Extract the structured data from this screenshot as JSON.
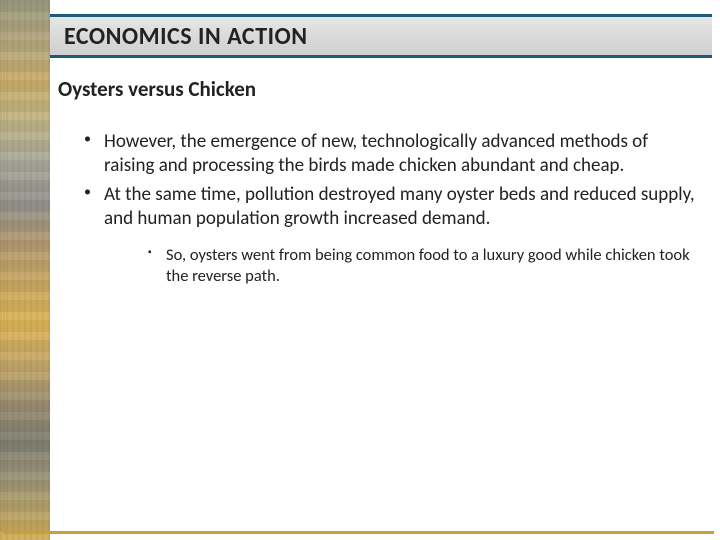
{
  "header": {
    "title": "ECONOMICS IN ACTION"
  },
  "slide": {
    "subtitle": "Oysters versus Chicken",
    "bullets": [
      "However, the emergence of new, technologically advanced methods of raising and processing the birds made chicken abundant and cheap.",
      "At the same time, pollution destroyed many oyster beds and reduced supply, and human population growth increased demand."
    ],
    "sub_bullets": [
      "So, oysters went from being common food to a luxury good while chicken took the reverse path."
    ]
  },
  "colors": {
    "title_border": "#1d5a75",
    "title_bg_top": "#e6e6e6",
    "title_bg_bottom": "#cfcfcf",
    "text": "#222222",
    "accent_gold": "#c8a038"
  }
}
